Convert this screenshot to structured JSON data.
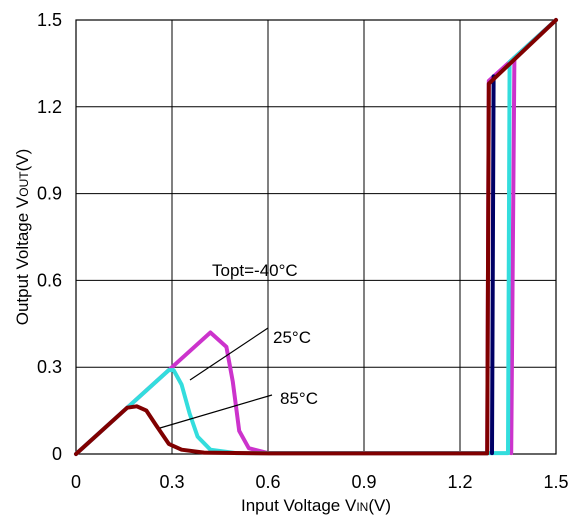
{
  "chart_data": {
    "type": "line",
    "xlabel_main": "Input Voltage V",
    "xlabel_sub": "IN",
    "xlabel_unit": "(V)",
    "ylabel_main": "Output Voltage V",
    "ylabel_sub": "OUT",
    "ylabel_unit": "(V)",
    "xlim": [
      0,
      1.5
    ],
    "ylim": [
      0,
      1.5
    ],
    "x_ticks": [
      "0",
      "0.3",
      "0.6",
      "0.9",
      "1.2",
      "1.5"
    ],
    "y_ticks": [
      "0",
      "0.3",
      "0.6",
      "0.9",
      "1.2",
      "1.5"
    ],
    "grid": true,
    "annotations": [
      {
        "text": "Topt=-40°C"
      },
      {
        "text": "25°C"
      },
      {
        "text": "85°C"
      }
    ],
    "series": [
      {
        "color": "#cc33cc",
        "points": [
          [
            0,
            0
          ],
          [
            0.3,
            0.3
          ],
          [
            0.42,
            0.42
          ],
          [
            0.47,
            0.37
          ],
          [
            0.49,
            0.25
          ],
          [
            0.51,
            0.08
          ],
          [
            0.54,
            0.02
          ],
          [
            0.6,
            0.003
          ],
          [
            1.285,
            0.003
          ],
          [
            1.29,
            1.29
          ],
          [
            1.5,
            1.5
          ]
        ]
      },
      {
        "color": "#cc33cc",
        "points": [
          [
            1.36,
            0.003
          ],
          [
            1.37,
            1.37
          ]
        ]
      },
      {
        "color": "#33dddd",
        "points": [
          [
            0,
            0
          ],
          [
            0.29,
            0.29
          ],
          [
            0.305,
            0.29
          ],
          [
            0.33,
            0.24
          ],
          [
            0.355,
            0.14
          ],
          [
            0.38,
            0.06
          ],
          [
            0.42,
            0.015
          ],
          [
            0.5,
            0.003
          ],
          [
            1.35,
            0.003
          ],
          [
            1.355,
            1.355
          ],
          [
            1.5,
            1.5
          ]
        ]
      },
      {
        "color": "#000066",
        "points": [
          [
            1.3,
            0.003
          ],
          [
            1.305,
            1.305
          ]
        ]
      },
      {
        "color": "#800000",
        "points": [
          [
            0,
            0
          ],
          [
            0.16,
            0.16
          ],
          [
            0.19,
            0.165
          ],
          [
            0.22,
            0.15
          ],
          [
            0.25,
            0.1
          ],
          [
            0.29,
            0.035
          ],
          [
            0.33,
            0.015
          ],
          [
            0.4,
            0.005
          ],
          [
            0.6,
            0.002
          ],
          [
            1.285,
            0.002
          ],
          [
            1.29,
            1.28
          ],
          [
            1.5,
            1.5
          ]
        ]
      }
    ]
  }
}
